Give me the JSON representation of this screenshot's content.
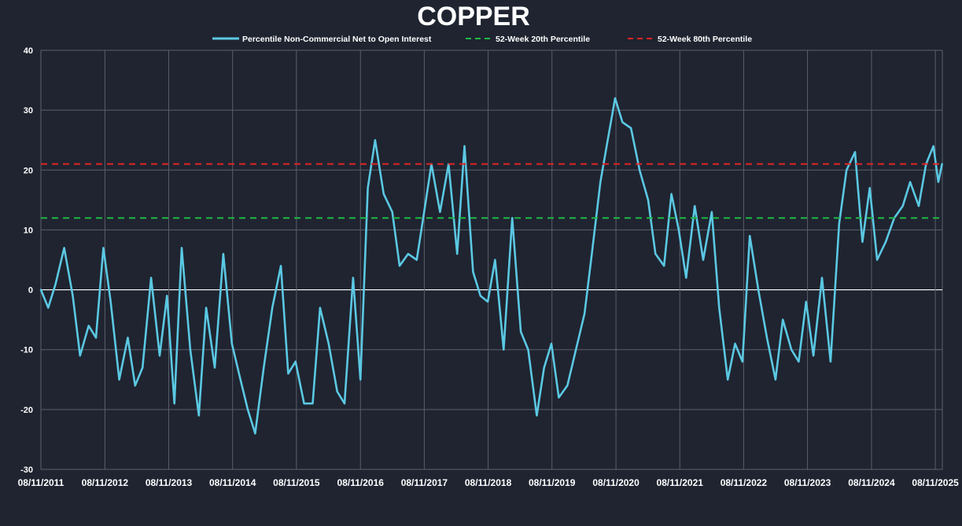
{
  "chart_data": {
    "type": "line",
    "title": "COPPER",
    "xlabel": "",
    "ylabel": "",
    "ylim": [
      -30,
      40
    ],
    "y_ticks": [
      -30,
      -20,
      -10,
      0,
      10,
      20,
      30,
      40
    ],
    "y_tick_labels": [
      "-30",
      "-20",
      "-10",
      "0",
      "10",
      "20",
      "30",
      "40"
    ],
    "xlim": [
      "2011-08-11",
      "2025-09-20"
    ],
    "x_ticks": [
      "2011-08-11",
      "2012-08-11",
      "2013-08-11",
      "2014-08-11",
      "2015-08-11",
      "2016-08-11",
      "2017-08-11",
      "2018-08-11",
      "2019-08-11",
      "2020-08-11",
      "2021-08-11",
      "2022-08-11",
      "2023-08-11",
      "2024-08-11",
      "2025-08-11"
    ],
    "x_tick_labels": [
      "08/11/2011",
      "08/11/2012",
      "08/11/2013",
      "08/11/2014",
      "08/11/2015",
      "08/11/2016",
      "08/11/2017",
      "08/11/2018",
      "08/11/2019",
      "08/11/2020",
      "08/11/2021",
      "08/11/2022",
      "08/11/2023",
      "08/11/2024",
      "08/11/2025"
    ],
    "grid": true,
    "legend_position": "top",
    "series": [
      {
        "name": "Percentile Non-Commercial Net to Open Interest",
        "color": "#5bc8e3",
        "style": "solid",
        "x": [
          "2011-08-11",
          "2011-09-22",
          "2011-11-03",
          "2011-12-22",
          "2012-02-09",
          "2012-03-22",
          "2012-05-10",
          "2012-06-21",
          "2012-08-02",
          "2012-09-13",
          "2012-11-01",
          "2012-12-20",
          "2013-01-31",
          "2013-03-14",
          "2013-05-02",
          "2013-06-20",
          "2013-08-01",
          "2013-09-12",
          "2013-10-24",
          "2013-12-12",
          "2014-01-30",
          "2014-03-13",
          "2014-05-01",
          "2014-06-19",
          "2014-08-07",
          "2014-09-25",
          "2014-11-06",
          "2014-12-18",
          "2015-02-05",
          "2015-03-26",
          "2015-05-14",
          "2015-06-25",
          "2015-08-06",
          "2015-09-24",
          "2015-11-12",
          "2015-12-24",
          "2016-02-11",
          "2016-03-31",
          "2016-05-12",
          "2016-06-30",
          "2016-08-11",
          "2016-09-22",
          "2016-11-03",
          "2016-12-22",
          "2017-02-09",
          "2017-03-23",
          "2017-05-11",
          "2017-06-29",
          "2017-08-10",
          "2017-09-21",
          "2017-11-09",
          "2017-12-28",
          "2018-02-15",
          "2018-03-29",
          "2018-05-17",
          "2018-06-28",
          "2018-08-09",
          "2018-09-20",
          "2018-11-08",
          "2018-12-27",
          "2019-02-14",
          "2019-03-28",
          "2019-05-16",
          "2019-06-27",
          "2019-08-08",
          "2019-09-19",
          "2019-11-07",
          "2019-12-26",
          "2020-02-13",
          "2020-03-26",
          "2020-05-14",
          "2020-06-25",
          "2020-08-06",
          "2020-09-17",
          "2020-11-05",
          "2020-12-24",
          "2021-02-11",
          "2021-03-25",
          "2021-05-13",
          "2021-06-24",
          "2021-08-05",
          "2021-09-16",
          "2021-11-04",
          "2021-12-23",
          "2022-02-10",
          "2022-03-24",
          "2022-05-12",
          "2022-06-23",
          "2022-08-04",
          "2022-09-15",
          "2022-11-03",
          "2022-12-22",
          "2023-02-09",
          "2023-03-23",
          "2023-05-11",
          "2023-06-22",
          "2023-08-03",
          "2023-09-14",
          "2023-11-02",
          "2023-12-21",
          "2024-02-08",
          "2024-03-21",
          "2024-05-09",
          "2024-06-20",
          "2024-08-01",
          "2024-09-12",
          "2024-10-31",
          "2024-12-19",
          "2025-02-06",
          "2025-03-20",
          "2025-05-08",
          "2025-06-19",
          "2025-07-31",
          "2025-08-28",
          "2025-09-18"
        ],
        "values": [
          0,
          -3,
          1,
          7,
          -1,
          -11,
          -6,
          -8,
          7,
          -2,
          -15,
          -8,
          -16,
          -13,
          2,
          -11,
          -1,
          -19,
          7,
          -10,
          -21,
          -3,
          -13,
          6,
          -9,
          -15,
          -20,
          -24,
          -13,
          -3,
          4,
          -14,
          -12,
          -19,
          -19,
          -3,
          -9,
          -17,
          -19,
          2,
          -15,
          17,
          25,
          16,
          13,
          4,
          6,
          5,
          13,
          21,
          13,
          21,
          6,
          24,
          3,
          -1,
          -2,
          5,
          -10,
          12,
          -7,
          -10,
          -21,
          -13,
          -9,
          -18,
          -16,
          -10,
          -4,
          6,
          18,
          25,
          32,
          28,
          27,
          20,
          15,
          6,
          4,
          16,
          10,
          2,
          14,
          5,
          13,
          -3,
          -15,
          -9,
          -12,
          9,
          0,
          -8,
          -15,
          -5,
          -10,
          -12,
          -2,
          -11,
          2,
          -12,
          11,
          20,
          23,
          8,
          17,
          5,
          8,
          12,
          14,
          18,
          14,
          21,
          24,
          18,
          21
        ]
      },
      {
        "name": "52-Week 20th Percentile",
        "color": "#1fb845",
        "style": "dashed",
        "value": 12
      },
      {
        "name": "52-Week 80th Percentile",
        "color": "#e02424",
        "style": "dashed",
        "value": 21
      }
    ]
  },
  "colors": {
    "background": "#1f2430",
    "grid": "#5a5f6b",
    "zero_line": "#ffffff",
    "text": "#ffffff"
  }
}
